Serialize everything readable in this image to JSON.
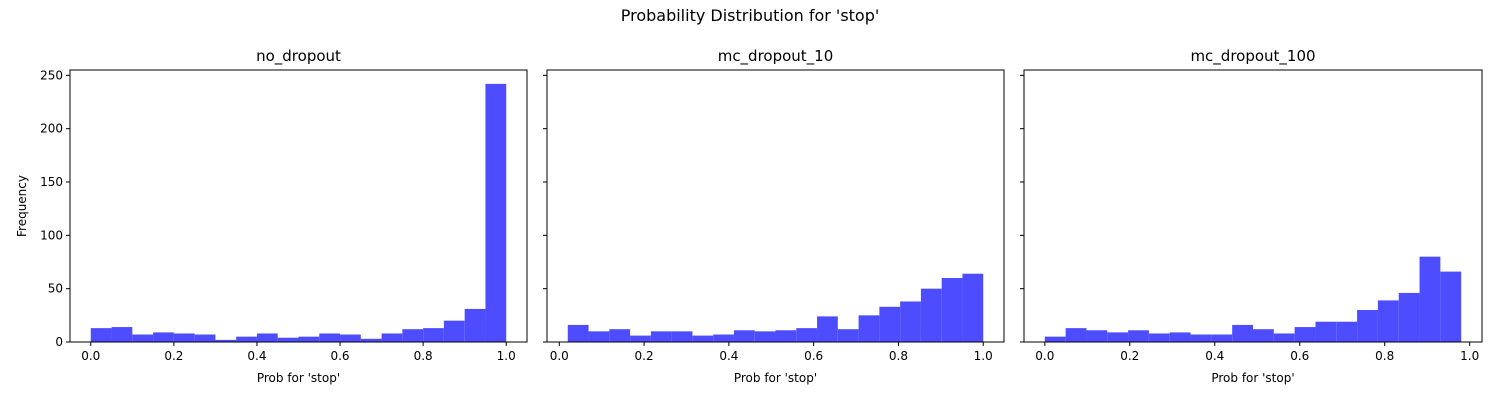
{
  "figure": {
    "suptitle": "Probability Distribution for 'stop'"
  },
  "chart_data": [
    {
      "type": "bar",
      "title": "no_dropout",
      "xlabel": "Prob for 'stop'",
      "ylabel": "Frequency",
      "xlim": [
        -0.05,
        1.05
      ],
      "ylim": [
        0,
        255
      ],
      "xticks": [
        "0.0",
        "0.2",
        "0.4",
        "0.6",
        "0.8",
        "1.0"
      ],
      "yticks": [
        "0",
        "50",
        "100",
        "150",
        "200",
        "250"
      ],
      "bin_start": 0.0,
      "bin_width": 0.05,
      "values": [
        13,
        14,
        7,
        9,
        8,
        7,
        2,
        5,
        8,
        4,
        5,
        8,
        7,
        3,
        8,
        12,
        13,
        20,
        31,
        242
      ],
      "color": "#4d4dff"
    },
    {
      "type": "bar",
      "title": "mc_dropout_10",
      "xlabel": "Prob for 'stop'",
      "ylabel": "",
      "xlim": [
        -0.029,
        1.049
      ],
      "ylim": [
        0,
        255
      ],
      "xticks": [
        "0.0",
        "0.2",
        "0.4",
        "0.6",
        "0.8",
        "1.0"
      ],
      "yticks": [],
      "bin_start": 0.02,
      "bin_width": 0.049,
      "values": [
        16,
        10,
        12,
        6,
        10,
        10,
        6,
        7,
        11,
        10,
        11,
        13,
        24,
        12,
        25,
        33,
        38,
        50,
        60,
        64
      ],
      "color": "#4d4dff"
    },
    {
      "type": "bar",
      "title": "mc_dropout_100",
      "xlabel": "Prob for 'stop'",
      "ylabel": "",
      "xlim": [
        -0.049,
        1.029
      ],
      "ylim": [
        0,
        255
      ],
      "xticks": [
        "0.0",
        "0.2",
        "0.4",
        "0.6",
        "0.8",
        "1.0"
      ],
      "yticks": [],
      "bin_start": 0.0,
      "bin_width": 0.049,
      "values": [
        5,
        13,
        11,
        9,
        11,
        8,
        9,
        7,
        7,
        16,
        12,
        8,
        14,
        19,
        19,
        30,
        39,
        46,
        80,
        66
      ],
      "color": "#4d4dff"
    }
  ]
}
